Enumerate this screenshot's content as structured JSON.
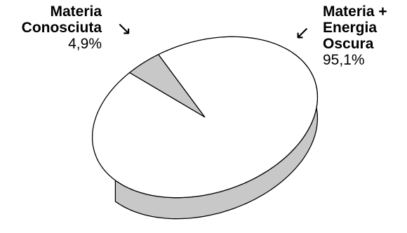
{
  "chart_data": {
    "type": "pie",
    "title": "",
    "style": "3d",
    "slices": [
      {
        "label_lines": [
          "Materia",
          "Conosciuta"
        ],
        "value": 4.9,
        "value_text": "4,9%",
        "color": "#c8c8c8"
      },
      {
        "label_lines": [
          "Materia +",
          "Energia",
          "Oscura"
        ],
        "value": 95.1,
        "value_text": "95,1%",
        "color": "#ffffff"
      }
    ],
    "side_color": "#c8c8c8",
    "outline_color": "#000000"
  },
  "icons": {
    "arrow_known": "↘",
    "arrow_dark": "↙"
  }
}
